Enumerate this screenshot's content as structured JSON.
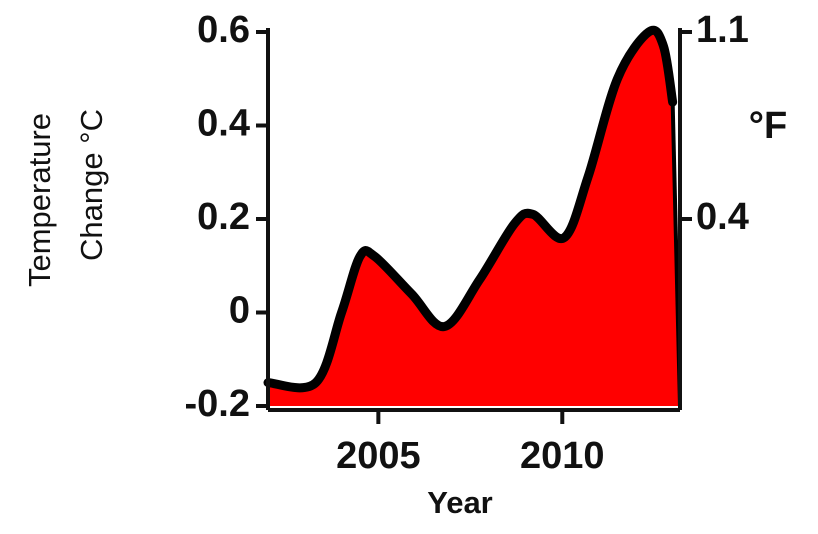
{
  "chart_data": {
    "type": "area",
    "ylabel": [
      "Temperature",
      "Change °C"
    ],
    "y2label": "°F",
    "xlabel": "Year",
    "x": [
      2002,
      2003.3,
      2004,
      2004.5,
      2004.9,
      2005.9,
      2006.8,
      2007.75,
      2008.7,
      2009.2,
      2010.05,
      2010.7,
      2011.5,
      2012.35,
      2012.75,
      2013.0
    ],
    "series": [
      {
        "color": "#ff0000",
        "line_color": "#000000",
        "values": [
          -0.15,
          -0.15,
          0.0,
          0.12,
          0.12,
          0.04,
          -0.03,
          0.07,
          0.19,
          0.21,
          0.16,
          0.29,
          0.5,
          0.6,
          0.57,
          0.45
        ]
      }
    ],
    "xlim": [
      2002,
      2013.2
    ],
    "xticks": [
      2005,
      2010
    ],
    "ylim": [
      -0.2,
      0.6
    ],
    "yticks": [
      -0.2,
      0,
      0.2,
      0.4,
      0.6
    ],
    "y2lim": [
      -0.36,
      1.08
    ],
    "y2ticks": [
      {
        "value": 1.08,
        "label": "1.1"
      },
      {
        "value": 0.36,
        "label": "0.4"
      }
    ],
    "grid": false
  }
}
